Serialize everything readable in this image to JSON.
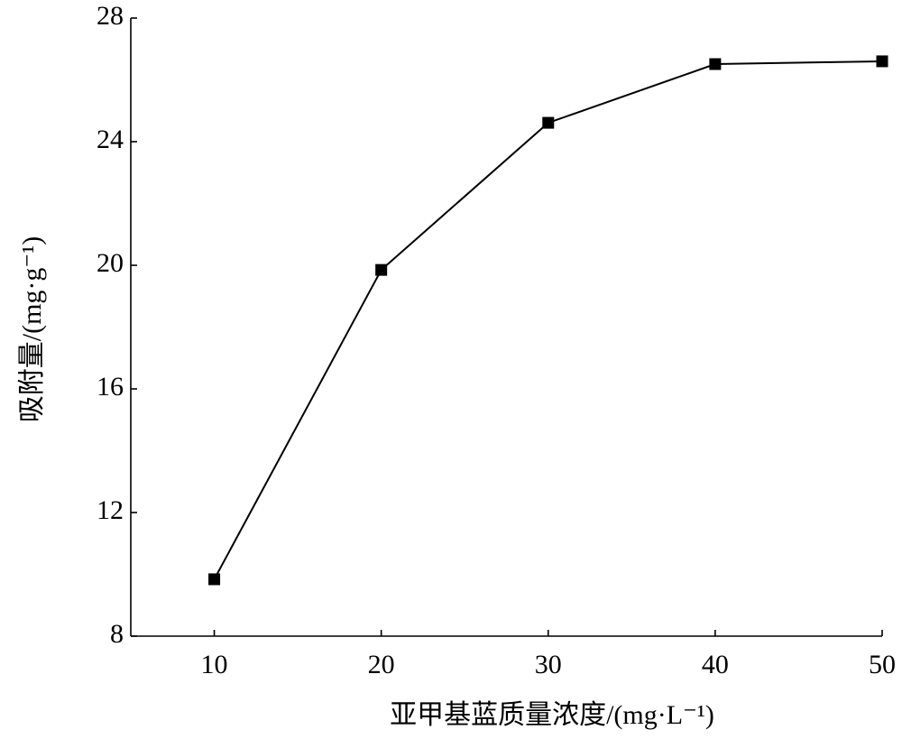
{
  "chart_data": {
    "type": "line",
    "x_label": "亚甲基蓝质量浓度/(mg·L⁻¹)",
    "y_label": "吸附量/(mg·g⁻¹)",
    "x": [
      10,
      20,
      30,
      40,
      50
    ],
    "values": [
      9.84,
      19.85,
      24.61,
      26.51,
      26.6
    ],
    "color": "#000000",
    "marker": "square",
    "xlim": [
      5,
      50
    ],
    "xticks": [
      10,
      20,
      30,
      40,
      50
    ],
    "ylim": [
      8,
      28
    ],
    "yticks": [
      8,
      12,
      16,
      20,
      24,
      28
    ],
    "grid": false
  }
}
